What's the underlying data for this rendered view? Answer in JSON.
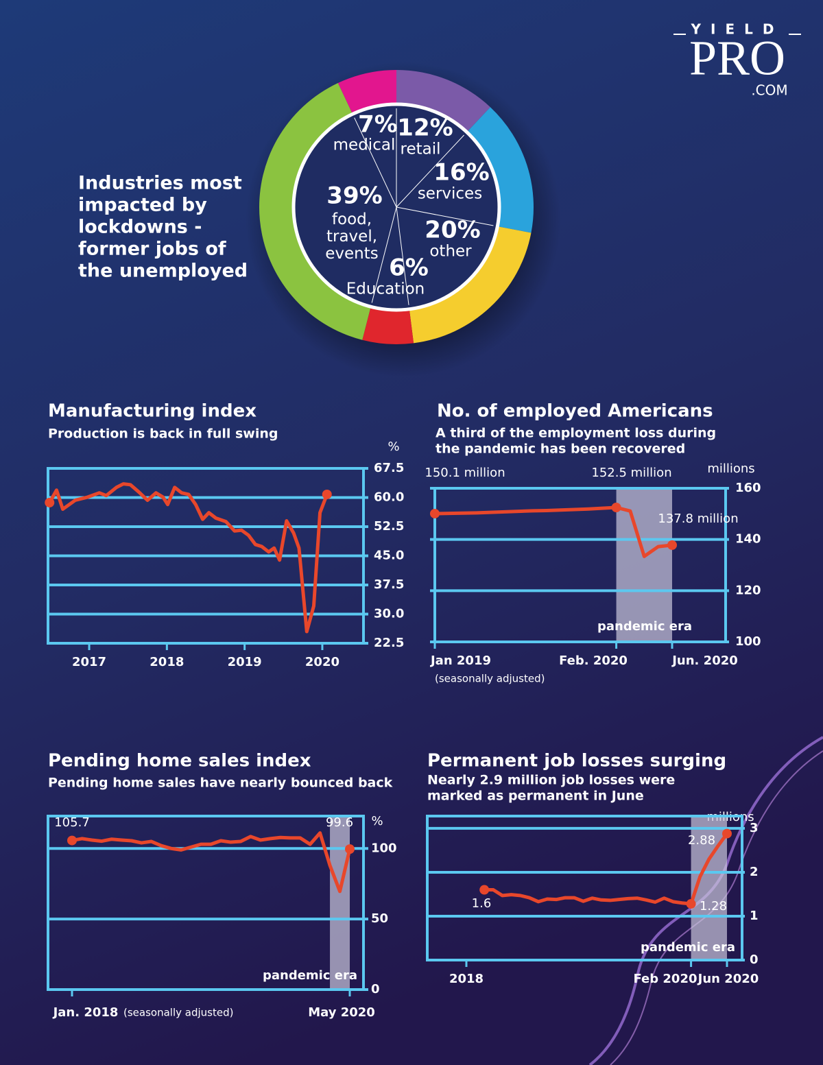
{
  "logo": {
    "top": "YIELD",
    "main": "PRO",
    "sub": ".COM"
  },
  "chart_data": [
    {
      "type": "pie",
      "title": [
        "Industries most",
        "impacted by",
        "lockdowns -",
        "former jobs of",
        "the unemployed"
      ],
      "categories": [
        "retail",
        "services",
        "other",
        "Education",
        "food, travel, events",
        "medical"
      ],
      "values": [
        12,
        16,
        20,
        6,
        39,
        7
      ],
      "value_labels": [
        "12%",
        "16%",
        "20%",
        "6%",
        "39%",
        "7%"
      ],
      "colors": [
        "#7b5aa8",
        "#2aa3dc",
        "#f5cd2e",
        "#e0262d",
        "#8bc340",
        "#e2168e"
      ]
    },
    {
      "type": "line",
      "title": "Manufacturing index",
      "subtitle": "Production is back in full swing",
      "y_label": "%",
      "color": "#e8472b",
      "x": [
        2016.49,
        2016.58,
        2016.66,
        2016.82,
        2016.98,
        2017.13,
        2017.22,
        2017.35,
        2017.44,
        2017.53,
        2017.64,
        2017.75,
        2017.86,
        2017.95,
        2018.01,
        2018.1,
        2018.19,
        2018.28,
        2018.37,
        2018.46,
        2018.54,
        2018.63,
        2018.76,
        2018.87,
        2018.96,
        2019.05,
        2019.14,
        2019.22,
        2019.31,
        2019.38,
        2019.45,
        2019.54,
        2019.63,
        2019.7,
        2019.8,
        2019.89,
        2019.97,
        2020.06
      ],
      "values": [
        58.7,
        61.9,
        57,
        59.3,
        60.1,
        61.2,
        60.5,
        62.6,
        63.5,
        63.3,
        61.4,
        59.3,
        61.2,
        60.1,
        58.2,
        62.6,
        61.2,
        60.8,
        58.2,
        54.4,
        56.1,
        54.7,
        53.8,
        51.4,
        51.6,
        50.3,
        47.9,
        47.4,
        46,
        47,
        43.9,
        54,
        50.9,
        47,
        25.5,
        32.1,
        56.1,
        60.8
      ],
      "xlim": [
        2016.47,
        2020.53
      ],
      "xticks": [
        2017,
        2018,
        2019,
        2020
      ],
      "ylim": [
        22.5,
        67.5
      ],
      "yticks": [
        67.5,
        {
          "value": 60,
          "label": "60.0"
        },
        52.5,
        {
          "value": 45,
          "label": "45.0"
        },
        37.5,
        {
          "value": 30,
          "label": "30.0"
        },
        22.5
      ],
      "grid": true
    },
    {
      "type": "line",
      "title": "No. of employed Americans",
      "subtitle": [
        "A third of the employment loss during",
        "the pandemic has been recovered"
      ],
      "y_label": "millions",
      "note": "(seasonally adjusted)",
      "annotation": "pandemic era",
      "color": "#e8472b",
      "categories": [
        "Jan 2019",
        null,
        null,
        null,
        null,
        null,
        null,
        null,
        null,
        null,
        null,
        null,
        null,
        "Feb. 2020",
        null,
        null,
        null,
        "Jun. 2020"
      ],
      "values": [
        150.1,
        150.2,
        150.3,
        150.4,
        150.6,
        150.8,
        151,
        151.2,
        151.3,
        151.5,
        151.7,
        151.9,
        152.2,
        152.5,
        151.1,
        133.4,
        137.2,
        137.8
      ],
      "value_labels": [
        "150.1 million",
        null,
        null,
        null,
        null,
        null,
        null,
        null,
        null,
        null,
        null,
        null,
        null,
        "152.5 million",
        null,
        null,
        null,
        "137.8 million"
      ],
      "ylim": [
        100,
        160
      ],
      "yticks": [
        160,
        140,
        120,
        100
      ],
      "grid": true
    },
    {
      "type": "line",
      "title": "Pending home sales index",
      "subtitle": "Pending home sales have nearly bounced back",
      "y_label": "%",
      "note": "(seasonally adjusted)",
      "annotation": "pandemic era",
      "color": "#e8472b",
      "categories": [
        "Jan. 2018",
        null,
        null,
        null,
        null,
        null,
        null,
        null,
        null,
        null,
        null,
        null,
        null,
        null,
        null,
        null,
        null,
        null,
        null,
        null,
        null,
        null,
        null,
        null,
        null,
        null,
        null,
        null,
        "May 2020"
      ],
      "values": [
        105.7,
        107,
        106,
        105.2,
        106.6,
        106,
        105.5,
        104,
        105,
        102,
        100,
        99,
        101,
        103,
        103,
        105.5,
        104.5,
        105,
        108.5,
        106,
        107,
        107.8,
        107.5,
        107.5,
        103,
        111,
        88,
        69.6,
        99.6
      ],
      "value_labels": [
        "105.7",
        null,
        null,
        null,
        null,
        null,
        null,
        null,
        null,
        null,
        null,
        null,
        null,
        null,
        null,
        null,
        null,
        null,
        null,
        null,
        null,
        null,
        null,
        null,
        null,
        null,
        null,
        null,
        "99.6"
      ],
      "ylim": [
        0,
        123
      ],
      "yticks": [
        100,
        50,
        0
      ],
      "grid": true
    },
    {
      "type": "line",
      "title": "Permanent job losses surging",
      "subtitle": [
        "Nearly 2.9 million job losses were",
        "marked as permanent in June"
      ],
      "y_label": "millions",
      "annotation": "pandemic era",
      "color": "#e8472b",
      "categories": [
        "2018",
        null,
        null,
        null,
        null,
        null,
        null,
        null,
        null,
        null,
        null,
        null,
        null,
        null,
        null,
        null,
        null,
        null,
        null,
        null,
        null,
        null,
        null,
        null,
        null,
        "Feb 2020",
        null,
        null,
        null,
        "Jun 2020"
      ],
      "values": [
        null,
        null,
        1.6,
        1.6,
        1.47,
        1.49,
        1.47,
        1.42,
        1.33,
        1.39,
        1.38,
        1.42,
        1.42,
        1.34,
        1.41,
        1.37,
        1.36,
        1.38,
        1.4,
        1.41,
        1.37,
        1.32,
        1.41,
        1.33,
        1.3,
        1.28,
        1.9,
        2.3,
        2.6,
        2.88
      ],
      "value_labels": [
        null,
        null,
        "1.6",
        null,
        null,
        null,
        null,
        null,
        null,
        null,
        null,
        null,
        null,
        null,
        null,
        null,
        null,
        null,
        null,
        null,
        null,
        null,
        null,
        null,
        null,
        "1.28",
        null,
        null,
        null,
        "2.88"
      ],
      "ylim": [
        0,
        3.28
      ],
      "yticks": [
        3,
        2,
        1,
        0
      ],
      "grid": true
    }
  ]
}
